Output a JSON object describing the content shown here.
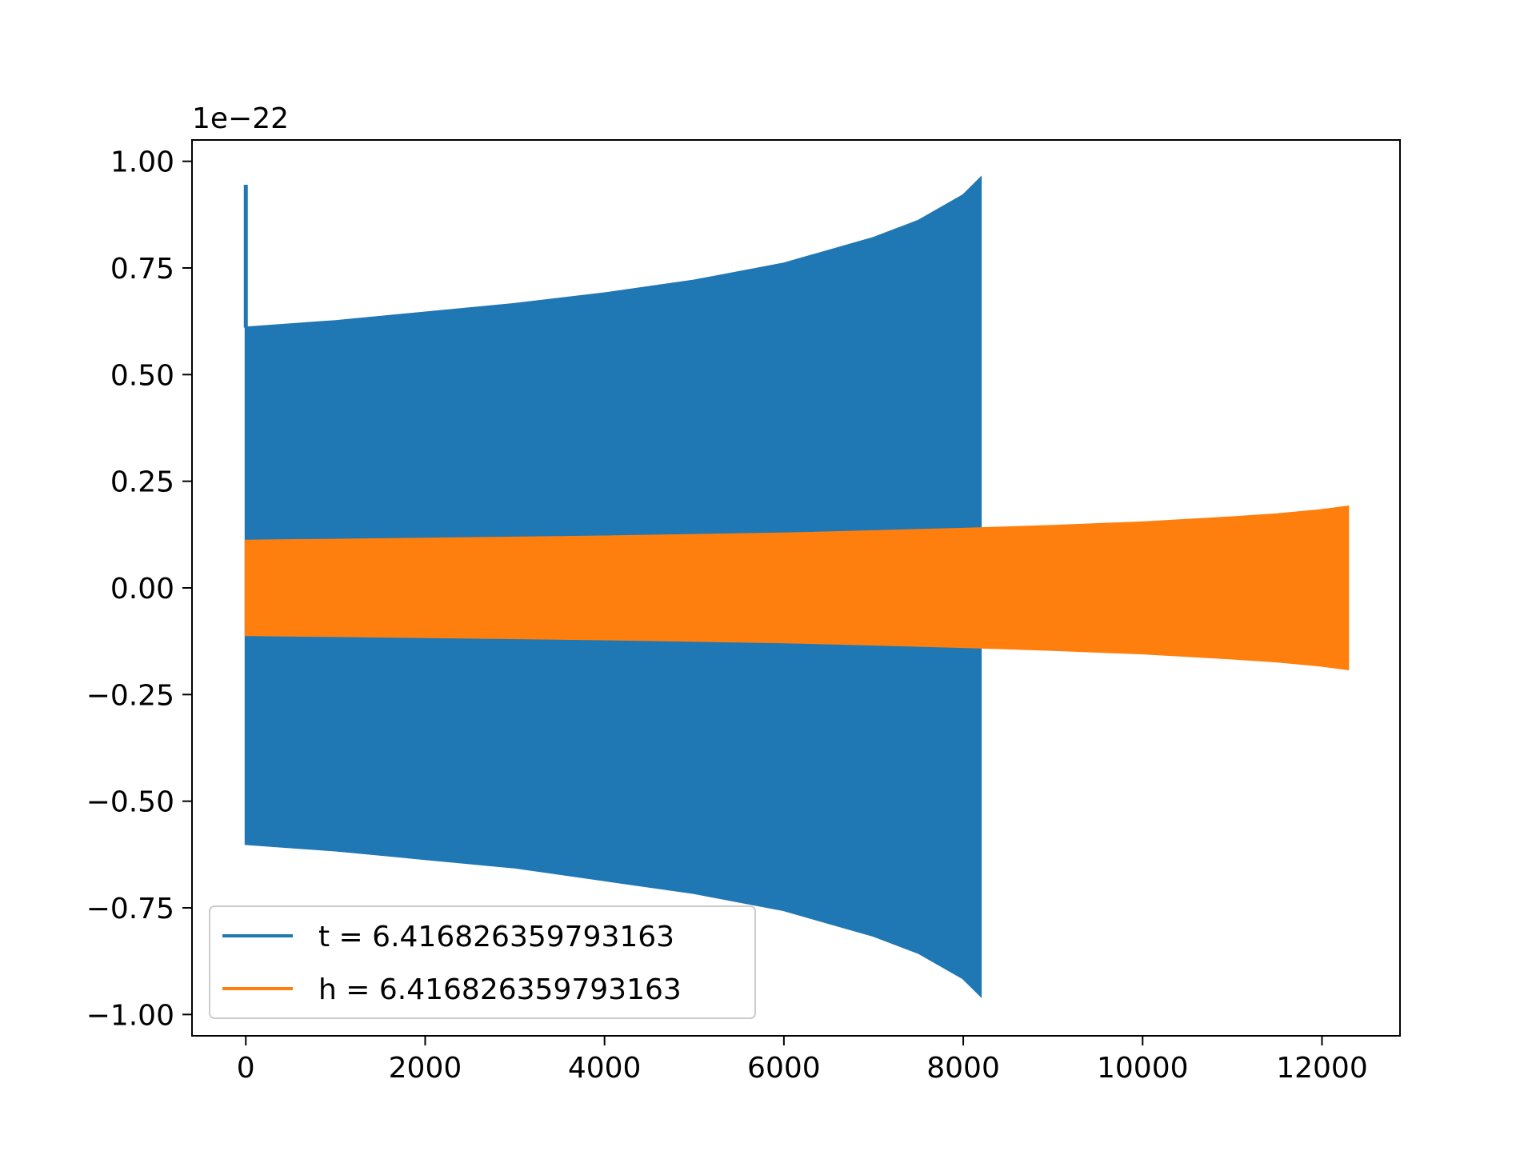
{
  "chart_data": {
    "type": "line",
    "title": "",
    "xlabel": "",
    "ylabel": "",
    "y_offset_label": "1e−22",
    "xlim": [
      -600,
      12870
    ],
    "ylim": [
      -1.05,
      1.05
    ],
    "x_ticks": [
      0,
      2000,
      4000,
      6000,
      8000,
      10000,
      12000
    ],
    "x_tick_labels": [
      "0",
      "2000",
      "4000",
      "6000",
      "8000",
      "10000",
      "12000"
    ],
    "y_ticks": [
      1.0,
      0.75,
      0.5,
      0.25,
      0.0,
      -0.25,
      -0.5,
      -0.75,
      -1.0
    ],
    "y_tick_labels": [
      "1.00",
      "0.75",
      "0.50",
      "0.25",
      "0.00",
      "−0.25",
      "−0.50",
      "−0.75",
      "−1.00"
    ],
    "grid": false,
    "legend_position": "lower-left",
    "series": [
      {
        "name": "t = 6.416826359793163",
        "color": "#1f77b4",
        "initial_spike": {
          "x": 0,
          "y": 0.945
        },
        "envelope_x": [
          0,
          1000,
          2000,
          3000,
          4000,
          5000,
          6000,
          7000,
          7500,
          8000,
          8192
        ],
        "envelope_upper": [
          0.61,
          0.625,
          0.645,
          0.665,
          0.69,
          0.72,
          0.76,
          0.82,
          0.86,
          0.92,
          0.96
        ],
        "envelope_lower": [
          -0.6,
          -0.615,
          -0.635,
          -0.655,
          -0.685,
          -0.715,
          -0.755,
          -0.815,
          -0.855,
          -0.915,
          -0.955
        ]
      },
      {
        "name": "h = 6.416826359793163",
        "color": "#ff7f0e",
        "envelope_x": [
          0,
          2000,
          4000,
          6000,
          8000,
          9000,
          10000,
          11000,
          11500,
          12000,
          12288
        ],
        "envelope_upper": [
          0.11,
          0.115,
          0.12,
          0.127,
          0.138,
          0.145,
          0.153,
          0.165,
          0.172,
          0.182,
          0.19
        ],
        "envelope_lower": [
          -0.11,
          -0.115,
          -0.12,
          -0.127,
          -0.138,
          -0.145,
          -0.153,
          -0.165,
          -0.172,
          -0.182,
          -0.19
        ]
      }
    ]
  }
}
